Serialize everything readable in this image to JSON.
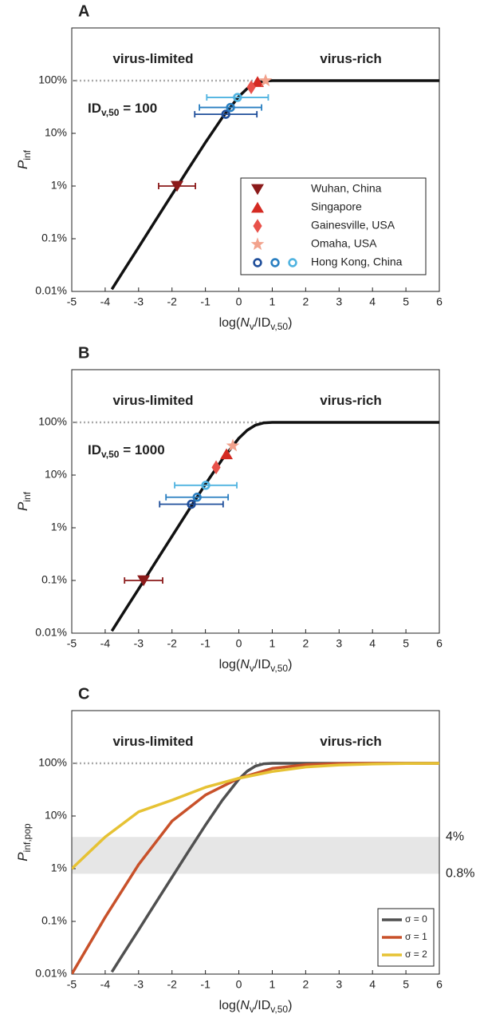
{
  "chart_data": [
    {
      "type": "line",
      "panel_label": "A",
      "xlabel": [
        {
          "text": "log("
        },
        {
          "text": "N",
          "style": "italic"
        },
        {
          "text": "v",
          "style": "sub"
        },
        {
          "text": "/ID"
        },
        {
          "text": "v,50",
          "style": "sub"
        },
        {
          "text": ")"
        }
      ],
      "ylabel": [
        {
          "text": "P",
          "style": "italic"
        },
        {
          "text": "inf",
          "style": "sub"
        }
      ],
      "annotations": [
        [
          {
            "text": "virus-limited"
          }
        ],
        [
          {
            "text": "virus-rich"
          }
        ],
        [
          {
            "text": "ID"
          },
          {
            "text": "v,50",
            "style": "sub"
          },
          {
            "text": " = 100"
          }
        ]
      ],
      "xlim": [
        -5,
        6
      ],
      "xticks": [
        -5,
        -4,
        -3,
        -2,
        -1,
        0,
        1,
        2,
        3,
        4,
        5,
        6
      ],
      "ylim": [
        0.01,
        1000
      ],
      "log_y": true,
      "yticks": [
        {
          "value": 0.01,
          "label": "0.01%"
        },
        {
          "value": 0.1,
          "label": "0.1%"
        },
        {
          "value": 1,
          "label": "1%"
        },
        {
          "value": 10,
          "label": "10%"
        },
        {
          "value": 100,
          "label": "100%"
        }
      ],
      "reference_line": {
        "y": 100,
        "x_end": 0.9,
        "color": "#aaaaaa"
      },
      "series": [
        {
          "color": "#111111",
          "x": [
            -3.8,
            -3.5,
            -3,
            -2.5,
            -2,
            -1.5,
            -1,
            -0.5,
            0,
            0.25,
            0.5,
            0.75,
            1,
            1.5,
            2,
            6
          ],
          "values": [
            0.011,
            0.022,
            0.069,
            0.219,
            0.69,
            2.17,
            6.7,
            19.7,
            50,
            70.9,
            88.8,
            98.0,
            99.9,
            100,
            100,
            100
          ]
        }
      ],
      "points": [
        {
          "name": "Wuhan, China",
          "marker": "triangle-down",
          "colors": [
            "#8b1a1a"
          ],
          "x": [
            -1.85
          ],
          "values": [
            1
          ],
          "xerr": [
            0.55
          ]
        },
        {
          "name": "Singapore",
          "marker": "triangle-up",
          "colors": [
            "#d42a22"
          ],
          "x": [
            0.56
          ],
          "values": [
            95
          ],
          "xerr": [
            0
          ]
        },
        {
          "name": "Gainesville, USA",
          "marker": "diamond",
          "colors": [
            "#e8514a"
          ],
          "x": [
            0.37
          ],
          "values": [
            75
          ],
          "xerr": [
            0
          ]
        },
        {
          "name": "Omaha, USA",
          "marker": "star",
          "colors": [
            "#f2a28c"
          ],
          "x": [
            0.8
          ],
          "values": [
            100
          ],
          "xerr": [
            0
          ]
        },
        {
          "name": "Hong Kong, China",
          "marker": "circle",
          "colors": [
            "#1f4e9a",
            "#2a7fc1",
            "#4fb3e0"
          ],
          "x": [
            -0.39,
            -0.25,
            -0.04
          ],
          "values": [
            23,
            31,
            48
          ],
          "xerr": [
            0.93,
            0.93,
            0.92
          ]
        }
      ],
      "legend": "right"
    },
    {
      "type": "line",
      "panel_label": "B",
      "xlabel": [
        {
          "text": "log("
        },
        {
          "text": "N",
          "style": "italic"
        },
        {
          "text": "v",
          "style": "sub"
        },
        {
          "text": "/ID"
        },
        {
          "text": "v,50",
          "style": "sub"
        },
        {
          "text": ")"
        }
      ],
      "ylabel": [
        {
          "text": "P",
          "style": "italic"
        },
        {
          "text": "inf",
          "style": "sub"
        }
      ],
      "annotations": [
        [
          {
            "text": "virus-limited"
          }
        ],
        [
          {
            "text": "virus-rich"
          }
        ],
        [
          {
            "text": "ID"
          },
          {
            "text": "v,50",
            "style": "sub"
          },
          {
            "text": " = 1000"
          }
        ]
      ],
      "xlim": [
        -5,
        6
      ],
      "xticks": [
        -5,
        -4,
        -3,
        -2,
        -1,
        0,
        1,
        2,
        3,
        4,
        5,
        6
      ],
      "ylim": [
        0.01,
        1000
      ],
      "log_y": true,
      "yticks": [
        {
          "value": 0.01,
          "label": "0.01%"
        },
        {
          "value": 0.1,
          "label": "0.1%"
        },
        {
          "value": 1,
          "label": "1%"
        },
        {
          "value": 10,
          "label": "10%"
        },
        {
          "value": 100,
          "label": "100%"
        }
      ],
      "reference_line": {
        "y": 100,
        "x_end": 0.9,
        "color": "#aaaaaa"
      },
      "series": [
        {
          "color": "#111111",
          "x": [
            -3.8,
            -3.5,
            -3,
            -2.5,
            -2,
            -1.5,
            -1,
            -0.5,
            0,
            0.25,
            0.5,
            0.75,
            1,
            1.5,
            2,
            6
          ],
          "values": [
            0.011,
            0.022,
            0.069,
            0.219,
            0.69,
            2.17,
            6.7,
            19.7,
            50,
            70.9,
            88.8,
            98.0,
            99.9,
            100,
            100,
            100
          ]
        }
      ],
      "points": [
        {
          "marker": "triangle-down",
          "colors": [
            "#8b1a1a"
          ],
          "x": [
            -2.85
          ],
          "values": [
            0.1
          ],
          "xerr": [
            0.57
          ]
        },
        {
          "marker": "triangle-up",
          "colors": [
            "#d42a22"
          ],
          "x": [
            -0.37
          ],
          "values": [
            25
          ],
          "xerr": [
            0
          ]
        },
        {
          "marker": "diamond",
          "colors": [
            "#e8514a"
          ],
          "x": [
            -0.68
          ],
          "values": [
            14
          ],
          "xerr": [
            0
          ]
        },
        {
          "marker": "star",
          "colors": [
            "#f2a28c"
          ],
          "x": [
            -0.18
          ],
          "values": [
            36
          ],
          "xerr": [
            0
          ]
        },
        {
          "marker": "circle",
          "colors": [
            "#1f4e9a",
            "#2a7fc1",
            "#4fb3e0"
          ],
          "x": [
            -1.42,
            -1.25,
            -0.99
          ],
          "values": [
            2.8,
            3.8,
            6.4
          ],
          "xerr": [
            0.95,
            0.93,
            0.93
          ]
        }
      ]
    },
    {
      "type": "line",
      "panel_label": "C",
      "xlabel": [
        {
          "text": "log("
        },
        {
          "text": "N",
          "style": "italic"
        },
        {
          "text": "v",
          "style": "sub"
        },
        {
          "text": "/ID"
        },
        {
          "text": "v,50",
          "style": "sub"
        },
        {
          "text": ")"
        }
      ],
      "ylabel": [
        {
          "text": "P",
          "style": "italic"
        },
        {
          "text": "inf,pop",
          "style": "sub"
        }
      ],
      "annotations": [
        [
          {
            "text": "virus-limited"
          }
        ],
        [
          {
            "text": "virus-rich"
          }
        ]
      ],
      "xlim": [
        -5,
        6
      ],
      "xticks": [
        -5,
        -4,
        -3,
        -2,
        -1,
        0,
        1,
        2,
        3,
        4,
        5,
        6
      ],
      "ylim": [
        0.01,
        1000
      ],
      "log_y": true,
      "yticks": [
        {
          "value": 0.01,
          "label": "0.01%"
        },
        {
          "value": 0.1,
          "label": "0.1%"
        },
        {
          "value": 1,
          "label": "1%"
        },
        {
          "value": 10,
          "label": "10%"
        },
        {
          "value": 100,
          "label": "100%"
        }
      ],
      "reference_line": {
        "y": 100,
        "x_end": 0.7,
        "color": "#aaaaaa"
      },
      "band": {
        "values": [
          0.8,
          4
        ],
        "labels": [
          "0.8%",
          "4%"
        ],
        "color": "#e6e6e6"
      },
      "series": [
        {
          "name": "σ = 0",
          "color": "#505050",
          "x": [
            -3.8,
            -3.5,
            -3,
            -2.5,
            -2,
            -1.5,
            -1,
            -0.5,
            0,
            0.25,
            0.5,
            0.75,
            1,
            1.5,
            2,
            6
          ],
          "values": [
            0.011,
            0.022,
            0.069,
            0.219,
            0.69,
            2.17,
            6.7,
            19.7,
            50,
            70.9,
            88.8,
            98.0,
            99.9,
            100,
            100,
            100
          ]
        },
        {
          "name": "σ = 1",
          "color": "#c8512a",
          "x": [
            -5,
            -4,
            -3,
            -2,
            -1,
            0,
            1,
            2,
            3,
            4,
            6
          ],
          "values": [
            0.01,
            0.12,
            1.2,
            8,
            25,
            52,
            80,
            94,
            99,
            100,
            100
          ]
        },
        {
          "name": "σ = 2",
          "color": "#e6c234",
          "x": [
            -5,
            -4,
            -3,
            -2,
            -1,
            0,
            1,
            2,
            3,
            4,
            5,
            6
          ],
          "values": [
            1,
            4,
            12,
            20,
            35,
            52,
            70,
            85,
            93,
            97,
            99,
            100
          ]
        }
      ],
      "legend": "lower right"
    }
  ]
}
